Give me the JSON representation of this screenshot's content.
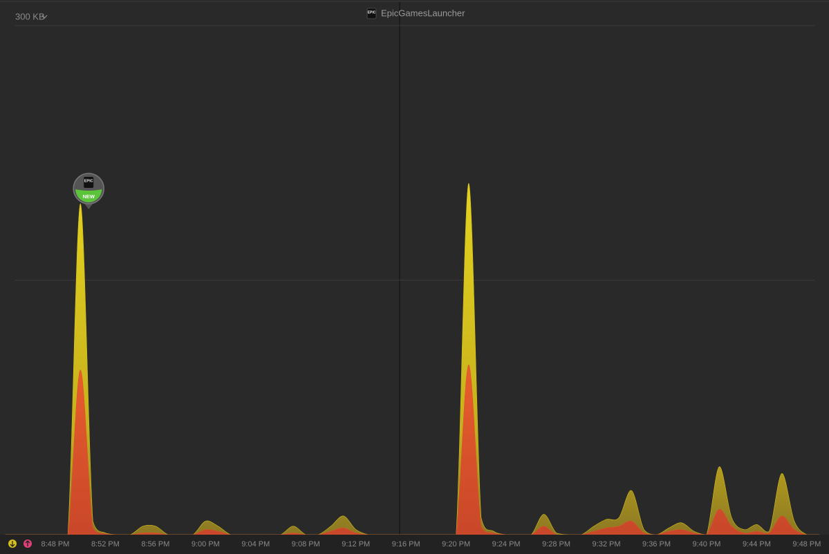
{
  "chart_data": {
    "type": "area",
    "title": "EpicGamesLauncher",
    "app_icon_text": "EPIC",
    "scale_label": "300 KB",
    "x": [
      "8:44 PM",
      "8:45 PM",
      "8:46 PM",
      "8:47 PM",
      "8:48 PM",
      "8:49 PM",
      "8:50 PM",
      "8:51 PM",
      "8:52 PM",
      "8:53 PM",
      "8:54 PM",
      "8:55 PM",
      "8:56 PM",
      "8:57 PM",
      "8:58 PM",
      "8:59 PM",
      "9:00 PM",
      "9:01 PM",
      "9:02 PM",
      "9:03 PM",
      "9:04 PM",
      "9:05 PM",
      "9:06 PM",
      "9:07 PM",
      "9:08 PM",
      "9:09 PM",
      "9:10 PM",
      "9:11 PM",
      "9:12 PM",
      "9:13 PM",
      "9:14 PM",
      "9:15 PM",
      "9:16 PM",
      "9:17 PM",
      "9:18 PM",
      "9:19 PM",
      "9:20 PM",
      "9:21 PM",
      "9:22 PM",
      "9:23 PM",
      "9:24 PM",
      "9:25 PM",
      "9:26 PM",
      "9:27 PM",
      "9:28 PM",
      "9:29 PM",
      "9:30 PM",
      "9:31 PM",
      "9:32 PM",
      "9:33 PM",
      "9:34 PM",
      "9:35 PM",
      "9:36 PM",
      "9:37 PM",
      "9:38 PM",
      "9:39 PM",
      "9:40 PM",
      "9:41 PM",
      "9:42 PM",
      "9:43 PM",
      "9:44 PM",
      "9:45 PM",
      "9:46 PM",
      "9:47 PM",
      "9:48 PM",
      "9:49 PM"
    ],
    "series": [
      {
        "color": "#d4bf1c",
        "values": [
          0,
          0,
          0,
          0,
          0,
          0,
          195,
          8,
          1,
          0,
          0,
          5,
          5,
          0,
          0,
          0,
          8,
          5,
          0,
          0,
          0,
          0,
          0,
          5,
          0,
          0,
          5,
          11,
          3,
          0,
          0,
          0,
          0,
          0,
          0,
          0,
          0,
          207,
          10,
          2,
          0,
          0,
          0,
          12,
          1,
          0,
          0,
          5,
          9,
          10,
          26,
          3,
          0,
          4,
          7,
          2,
          0,
          40,
          10,
          3,
          6,
          2,
          36,
          8,
          0,
          0
        ]
      },
      {
        "color": "#d9532b",
        "values": [
          0,
          0,
          0,
          0,
          0,
          0,
          97,
          4,
          0.5,
          0,
          0,
          1,
          1,
          0,
          0,
          0,
          3,
          2,
          0,
          0,
          0,
          0,
          0,
          1,
          0,
          0,
          2,
          4,
          1,
          0,
          0,
          0,
          0,
          0,
          0,
          0,
          0,
          100,
          5,
          1,
          0,
          0,
          0,
          5,
          0,
          0,
          0,
          2,
          4,
          5,
          8,
          1,
          0,
          2,
          3,
          1,
          0,
          15,
          5,
          1,
          2,
          1,
          11,
          3,
          0,
          0
        ]
      }
    ],
    "annotation": {
      "label": "NEW",
      "x": "8:50 PM"
    },
    "xlim": [
      "8:44 PM",
      "9:49 PM"
    ],
    "xticks": [
      "8:48 PM",
      "8:52 PM",
      "8:56 PM",
      "9:00 PM",
      "9:04 PM",
      "9:08 PM",
      "9:12 PM",
      "9:16 PM",
      "9:20 PM",
      "9:24 PM",
      "9:28 PM",
      "9:32 PM",
      "9:36 PM",
      "9:40 PM",
      "9:44 PM",
      "9:48 PM"
    ],
    "ylim": [
      0,
      300
    ],
    "grid_lines": [
      150,
      300
    ]
  }
}
